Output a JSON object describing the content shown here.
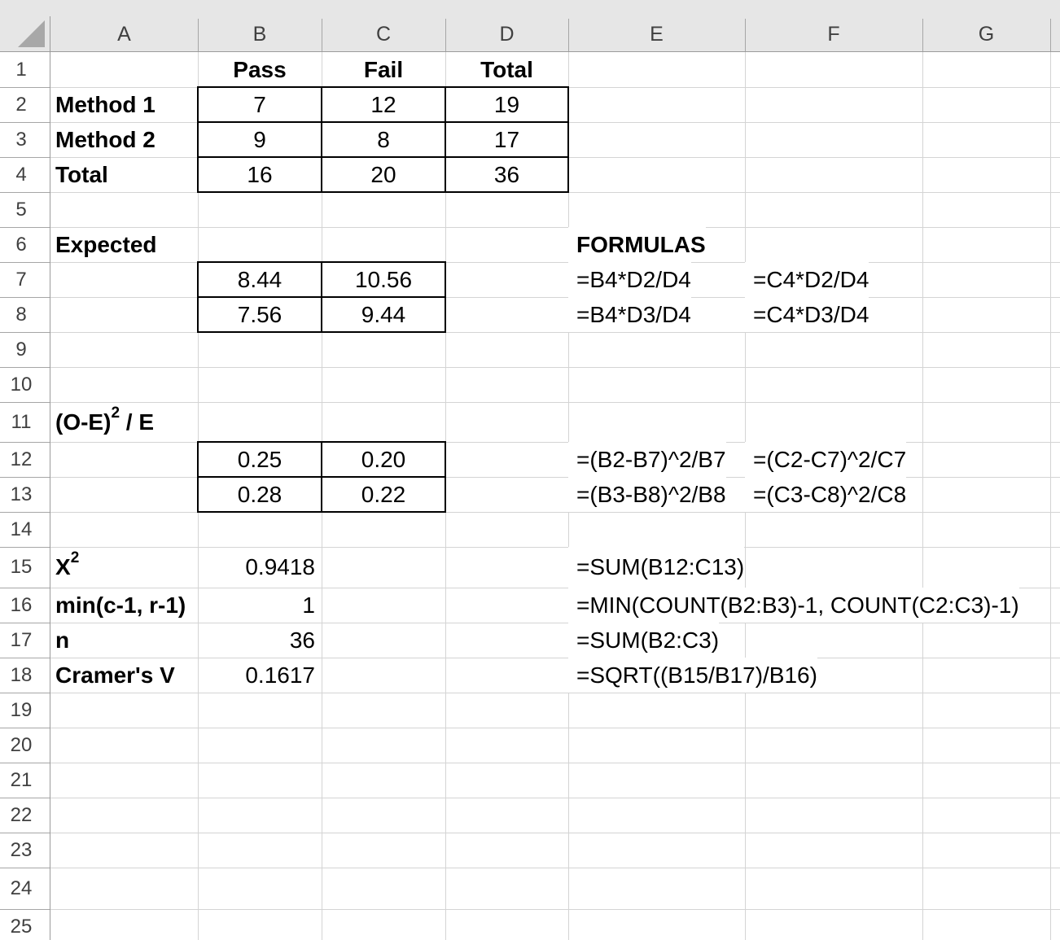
{
  "app": {
    "kind": "spreadsheet"
  },
  "colors": {
    "header_bg": "#e6e6e6",
    "header_text": "#404040",
    "header_line": "#a6a6a6",
    "header_edge": "#9b9b9b",
    "gridline": "#d4d4d4",
    "cell_text": "#000000",
    "border_black": "#000000"
  },
  "sheet": {
    "column_headers": [
      "A",
      "B",
      "C",
      "D",
      "E",
      "F",
      "G"
    ],
    "row_headers": [
      "1",
      "2",
      "3",
      "4",
      "5",
      "6",
      "7",
      "8",
      "9",
      "10",
      "11",
      "12",
      "13",
      "14",
      "15",
      "16",
      "17",
      "18",
      "19",
      "20",
      "21",
      "22",
      "23",
      "24",
      "25"
    ],
    "bordered_ranges": [
      "B2:D4",
      "B7:C8",
      "B12:C13"
    ],
    "cells": [
      {
        "ref": "B1",
        "text": "Pass",
        "bold": true,
        "align": "center"
      },
      {
        "ref": "C1",
        "text": "Fail",
        "bold": true,
        "align": "center"
      },
      {
        "ref": "D1",
        "text": "Total",
        "bold": true,
        "align": "center"
      },
      {
        "ref": "A2",
        "text": "Method 1",
        "bold": true,
        "align": "left"
      },
      {
        "ref": "B2",
        "text": "7",
        "align": "center"
      },
      {
        "ref": "C2",
        "text": "12",
        "align": "center"
      },
      {
        "ref": "D2",
        "text": "19",
        "align": "center"
      },
      {
        "ref": "A3",
        "text": "Method 2",
        "bold": true,
        "align": "left"
      },
      {
        "ref": "B3",
        "text": "9",
        "align": "center"
      },
      {
        "ref": "C3",
        "text": "8",
        "align": "center"
      },
      {
        "ref": "D3",
        "text": "17",
        "align": "center"
      },
      {
        "ref": "A4",
        "text": "Total",
        "bold": true,
        "align": "left"
      },
      {
        "ref": "B4",
        "text": "16",
        "align": "center"
      },
      {
        "ref": "C4",
        "text": "20",
        "align": "center"
      },
      {
        "ref": "D4",
        "text": "36",
        "align": "center"
      },
      {
        "ref": "A6",
        "text": "Expected",
        "bold": true,
        "align": "left"
      },
      {
        "ref": "E6",
        "text": "FORMULAS",
        "bold": true,
        "align": "left",
        "formula": true
      },
      {
        "ref": "B7",
        "text": "8.44",
        "align": "center"
      },
      {
        "ref": "C7",
        "text": "10.56",
        "align": "center"
      },
      {
        "ref": "E7",
        "text": "=B4*D2/D4",
        "align": "left",
        "formula": true
      },
      {
        "ref": "F7",
        "text": "=C4*D2/D4",
        "align": "left",
        "formula": true
      },
      {
        "ref": "B8",
        "text": "7.56",
        "align": "center"
      },
      {
        "ref": "C8",
        "text": "9.44",
        "align": "center"
      },
      {
        "ref": "E8",
        "text": "=B4*D3/D4",
        "align": "left",
        "formula": true
      },
      {
        "ref": "F8",
        "text": "=C4*D3/D4",
        "align": "left",
        "formula": true
      },
      {
        "ref": "A11",
        "parts": [
          {
            "t": "(O-E)"
          },
          {
            "t": "2",
            "sup": true
          },
          {
            "t": " / E"
          }
        ],
        "bold": true,
        "align": "left"
      },
      {
        "ref": "B12",
        "text": "0.25",
        "align": "center"
      },
      {
        "ref": "C12",
        "text": "0.20",
        "align": "center"
      },
      {
        "ref": "E12",
        "text": "=(B2-B7)^2/B7",
        "align": "left",
        "formula": true
      },
      {
        "ref": "F12",
        "text": "=(C2-C7)^2/C7",
        "align": "left",
        "formula": true
      },
      {
        "ref": "B13",
        "text": "0.28",
        "align": "center"
      },
      {
        "ref": "C13",
        "text": "0.22",
        "align": "center"
      },
      {
        "ref": "E13",
        "text": "=(B3-B8)^2/B8",
        "align": "left",
        "formula": true
      },
      {
        "ref": "F13",
        "text": "=(C3-C8)^2/C8",
        "align": "left",
        "formula": true
      },
      {
        "ref": "A15",
        "parts": [
          {
            "t": "X"
          },
          {
            "t": "2",
            "sup": true
          }
        ],
        "bold": true,
        "align": "left"
      },
      {
        "ref": "B15",
        "text": "0.9418",
        "align": "right"
      },
      {
        "ref": "E15",
        "text": "=SUM(B12:C13)",
        "align": "left",
        "formula": true
      },
      {
        "ref": "A16",
        "text": "min(c-1, r-1)",
        "bold": true,
        "align": "left"
      },
      {
        "ref": "B16",
        "text": "1",
        "align": "right"
      },
      {
        "ref": "E16",
        "text": "=MIN(COUNT(B2:B3)-1, COUNT(C2:C3)-1)",
        "align": "left",
        "formula": true
      },
      {
        "ref": "A17",
        "text": "n",
        "bold": true,
        "align": "left"
      },
      {
        "ref": "B17",
        "text": "36",
        "align": "right"
      },
      {
        "ref": "E17",
        "text": "=SUM(B2:C3)",
        "align": "left",
        "formula": true
      },
      {
        "ref": "A18",
        "text": "Cramer's V",
        "bold": true,
        "align": "left"
      },
      {
        "ref": "B18",
        "text": "0.1617",
        "align": "right"
      },
      {
        "ref": "E18",
        "text": "=SQRT((B15/B17)/B16)",
        "align": "left",
        "formula": true
      }
    ]
  }
}
